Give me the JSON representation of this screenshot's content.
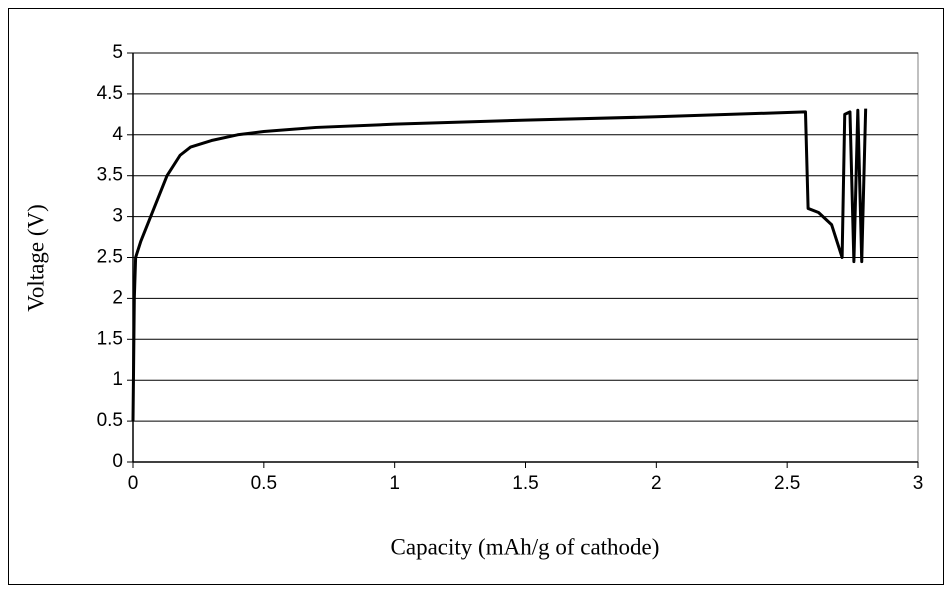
{
  "chart_data": {
    "type": "line",
    "x_label": "Capacity (mAh/g of cathode)",
    "y_label": "Voltage (V)",
    "xlim": [
      0,
      3
    ],
    "xticks": [
      0,
      0.5,
      1,
      1.5,
      2,
      2.5,
      3
    ],
    "ylim": [
      0,
      5
    ],
    "yticks": [
      0,
      0.5,
      1,
      1.5,
      2,
      2.5,
      3,
      3.5,
      4,
      4.5,
      5
    ],
    "grid": true,
    "series": [
      {
        "color": "#000000",
        "x": [
          0,
          0.005,
          0.01,
          0.03,
          0.08,
          0.13,
          0.18,
          0.22,
          0.3,
          0.4,
          0.5,
          0.7,
          1.0,
          1.5,
          2.0,
          2.57,
          2.58,
          2.62,
          2.67,
          2.71,
          2.72,
          2.74,
          2.755,
          2.77,
          2.785,
          2.8
        ],
        "values": [
          0.5,
          2.0,
          2.5,
          2.7,
          3.1,
          3.5,
          3.75,
          3.85,
          3.93,
          4.0,
          4.04,
          4.09,
          4.13,
          4.18,
          4.22,
          4.28,
          3.1,
          3.05,
          2.9,
          2.5,
          4.25,
          4.28,
          2.45,
          4.3,
          2.45,
          4.32
        ]
      }
    ]
  }
}
